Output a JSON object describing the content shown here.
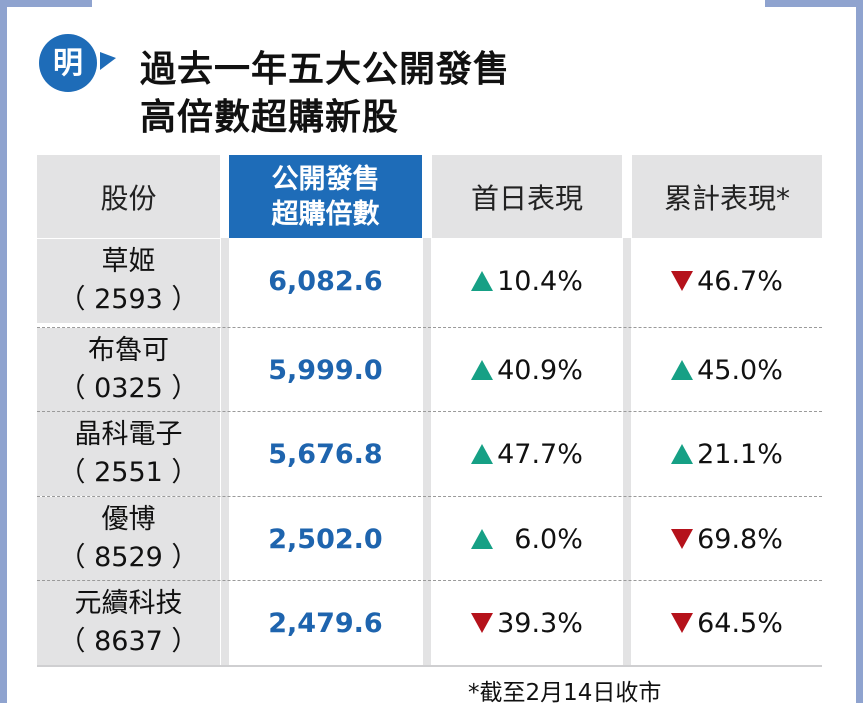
{
  "logo": {
    "char": "明",
    "color": "#1e6cb8"
  },
  "title": {
    "line1": "過去一年五大公開發售",
    "line2": "高倍數超購新股"
  },
  "chart_data": {
    "type": "table",
    "columns": [
      "股份",
      "公開發售\n超購倍數",
      "首日表現",
      "累計表現*"
    ],
    "rows": [
      {
        "name": "草姬",
        "code": "（ 2593 ）",
        "multiple": "6,082.6",
        "first_day": {
          "dir": "up",
          "text": "10.4%"
        },
        "cumulative": {
          "dir": "down",
          "text": "46.7%"
        }
      },
      {
        "name": "布魯可",
        "code": "（ 0325 ）",
        "multiple": "5,999.0",
        "first_day": {
          "dir": "up",
          "text": "40.9%"
        },
        "cumulative": {
          "dir": "up",
          "text": "45.0%"
        }
      },
      {
        "name": "晶科電子",
        "code": "（ 2551 ）",
        "multiple": "5,676.8",
        "first_day": {
          "dir": "up",
          "text": "47.7%"
        },
        "cumulative": {
          "dir": "up",
          "text": "21.1%"
        }
      },
      {
        "name": "優博",
        "code": "（ 8529 ）",
        "multiple": "2,502.0",
        "first_day": {
          "dir": "up",
          "text": "  6.0%"
        },
        "cumulative": {
          "dir": "down",
          "text": "69.8%"
        }
      },
      {
        "name": "元續科技",
        "code": "（ 8637 ）",
        "multiple": "2,479.6",
        "first_day": {
          "dir": "down",
          "text": "39.3%"
        },
        "cumulative": {
          "dir": "down",
          "text": "64.5%"
        }
      }
    ],
    "up_color": "#16a085",
    "down_color": "#b5121b",
    "highlight_column_color": "#1e6cb8"
  },
  "footnote": "*截至2月14日收市"
}
